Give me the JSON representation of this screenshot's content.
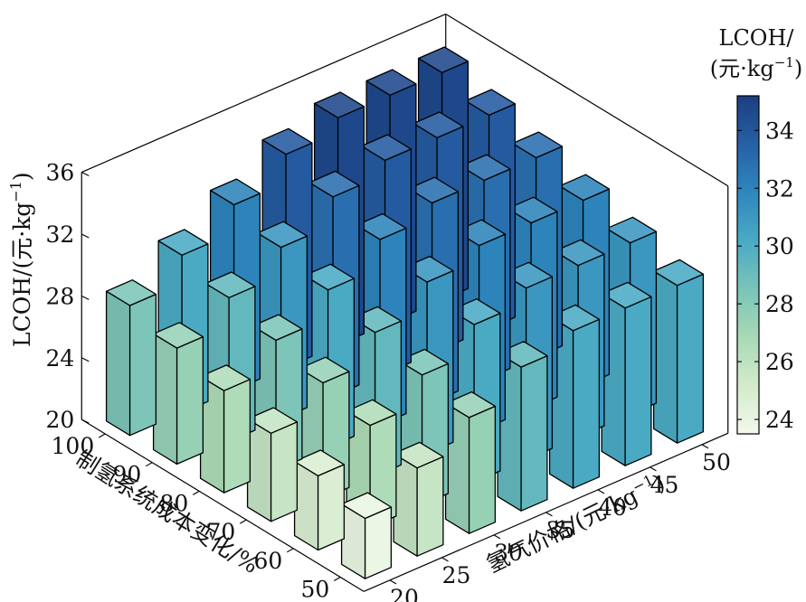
{
  "chart_data": {
    "type": "bar3d",
    "x": {
      "label": "氢气价格/(元·kg",
      "label_sup": "−1",
      "label_end": ")",
      "ticks": [
        "20",
        "25",
        "30",
        "35",
        "40",
        "45",
        "50"
      ]
    },
    "y": {
      "label": "制氢系统成本变化/%",
      "ticks": [
        "50",
        "60",
        "70",
        "80",
        "90",
        "100"
      ]
    },
    "z": {
      "label": "LCOH/(元·kg",
      "label_sup": "−1",
      "label_end": ")",
      "ticks": [
        "20",
        "24",
        "28",
        "32",
        "36"
      ],
      "range": [
        20,
        36
      ]
    },
    "colorbar": {
      "title_line1": "LCOH/",
      "title_line2": "(元·kg",
      "title_sup": "−1",
      "title_end": ")",
      "ticks": [
        "24",
        "26",
        "28",
        "30",
        "32",
        "34"
      ],
      "range": [
        23.5,
        35.2
      ],
      "colors": [
        "#f3f9ec",
        "#d2ebcb",
        "#a8d9b5",
        "#79c4b8",
        "#4aaac4",
        "#2e87bd",
        "#2660a6",
        "#1b3e80"
      ]
    },
    "x_values": [
      20,
      25,
      30,
      35,
      40,
      45,
      50
    ],
    "y_values": [
      50,
      60,
      70,
      80,
      90,
      100
    ],
    "values": [
      [
        23.9,
        24.8,
        25.7,
        26.6,
        27.5,
        28.4
      ],
      [
        25.7,
        26.6,
        27.5,
        28.4,
        29.3,
        30.2
      ],
      [
        27.5,
        28.4,
        29.3,
        30.2,
        31.1,
        32.0
      ],
      [
        29.3,
        30.2,
        31.1,
        32.0,
        32.9,
        33.8
      ],
      [
        30.2,
        31.1,
        32.0,
        32.9,
        33.8,
        34.7
      ],
      [
        30.2,
        31.1,
        32.0,
        32.9,
        33.8,
        34.7
      ],
      [
        30.2,
        31.1,
        32.0,
        32.9,
        33.8,
        34.7
      ]
    ]
  }
}
